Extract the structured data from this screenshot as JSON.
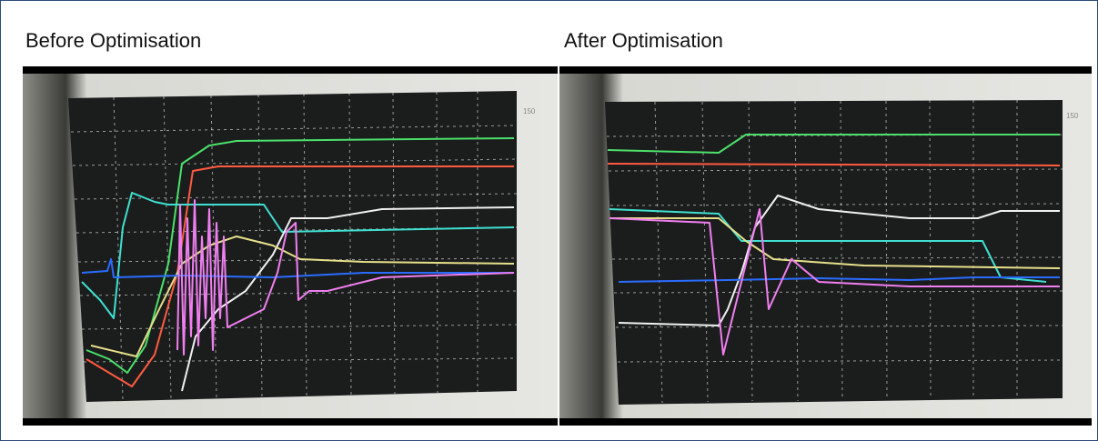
{
  "panels": [
    {
      "title": "Before Optimisation"
    },
    {
      "title": "After Optimisation"
    }
  ]
}
